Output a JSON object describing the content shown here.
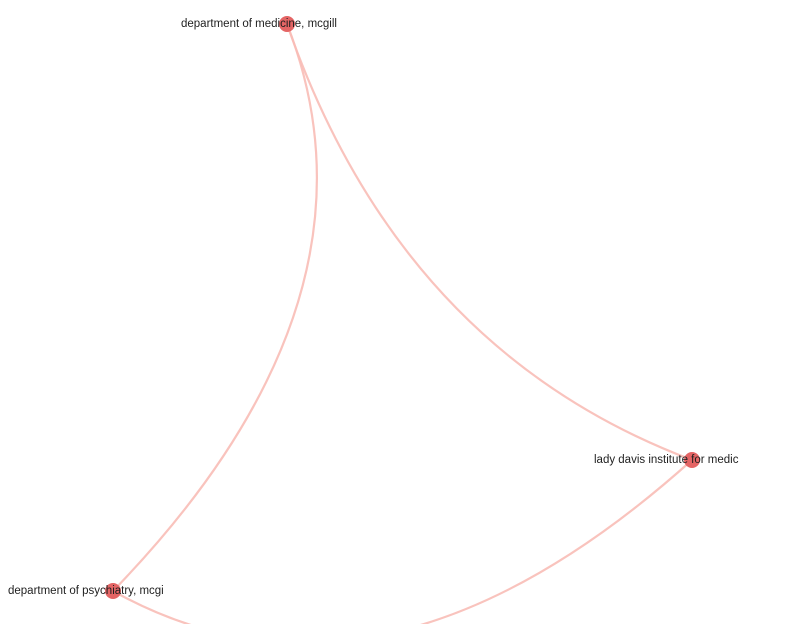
{
  "colors": {
    "node_fill": "#e46565",
    "edge_stroke": "#f8bdb6",
    "label_text": "#1f1f1f"
  },
  "nodes": [
    {
      "id": "medicine",
      "label": "department of medicine, mcgill"
    },
    {
      "id": "ladydavis",
      "label": "lady davis institute for medic"
    },
    {
      "id": "psychiatry",
      "label": "department of psychiatry, mcgi"
    }
  ],
  "edges": [
    {
      "source": "medicine",
      "target": "psychiatry"
    },
    {
      "source": "medicine",
      "target": "ladydavis"
    },
    {
      "source": "psychiatry",
      "target": "ladydavis"
    }
  ]
}
